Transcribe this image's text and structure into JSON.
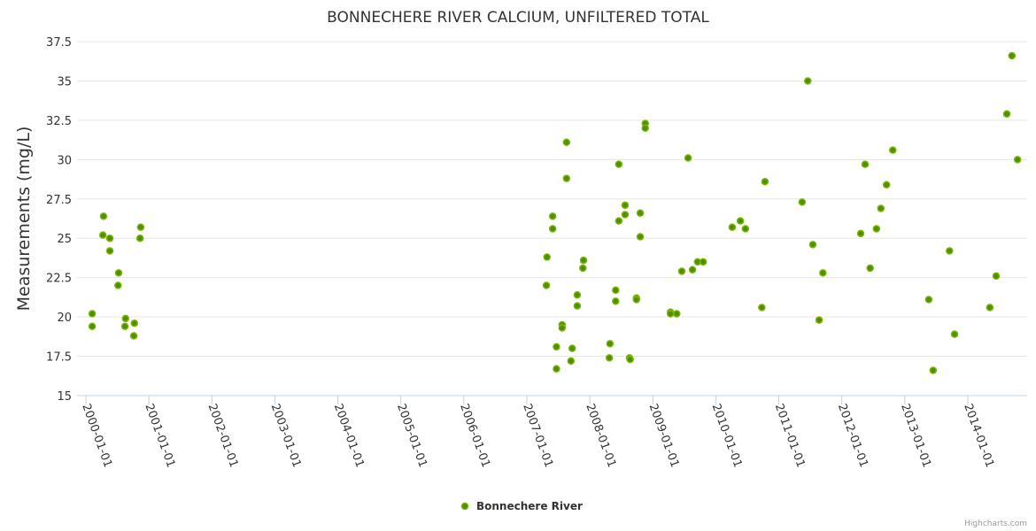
{
  "chart_data": {
    "type": "scatter",
    "title": "BONNECHERE RIVER CALCIUM, UNFILTERED TOTAL",
    "xlabel": "",
    "ylabel": "Measurements (mg/L)",
    "ylim": [
      15,
      37.5
    ],
    "yticks": [
      "15",
      "17.5",
      "20",
      "22.5",
      "25",
      "27.5",
      "30",
      "32.5",
      "35",
      "37.5"
    ],
    "xlim_year": [
      2000,
      2014.95
    ],
    "xticks": [
      "2000-01-01",
      "2001-01-01",
      "2002-01-01",
      "2003-01-01",
      "2004-01-01",
      "2005-01-01",
      "2006-01-01",
      "2007-01-01",
      "2008-01-01",
      "2009-01-01",
      "2010-01-01",
      "2011-01-01",
      "2012-01-01",
      "2013-01-01",
      "2014-01-01"
    ],
    "x_units": "decimal year",
    "grid": true,
    "legend_position": "bottom-center",
    "series": [
      {
        "name": "Bonnechere River",
        "color": "#7cb500",
        "fill": "#4e8f00",
        "points": [
          [
            2000.1,
            20.2
          ],
          [
            2000.1,
            19.4
          ],
          [
            2000.28,
            26.4
          ],
          [
            2000.27,
            25.2
          ],
          [
            2000.38,
            25.0
          ],
          [
            2000.38,
            24.2
          ],
          [
            2000.52,
            22.8
          ],
          [
            2000.51,
            22.0
          ],
          [
            2000.63,
            19.9
          ],
          [
            2000.62,
            19.4
          ],
          [
            2000.77,
            19.6
          ],
          [
            2000.76,
            18.8
          ],
          [
            2000.87,
            25.7
          ],
          [
            2000.86,
            25.0
          ],
          [
            2007.32,
            23.8
          ],
          [
            2007.31,
            22.0
          ],
          [
            2007.41,
            26.4
          ],
          [
            2007.41,
            25.6
          ],
          [
            2007.47,
            18.1
          ],
          [
            2007.47,
            16.7
          ],
          [
            2007.56,
            19.5
          ],
          [
            2007.56,
            19.3
          ],
          [
            2007.63,
            31.1
          ],
          [
            2007.63,
            28.8
          ],
          [
            2007.72,
            18.0
          ],
          [
            2007.7,
            17.2
          ],
          [
            2007.8,
            21.4
          ],
          [
            2007.8,
            20.7
          ],
          [
            2007.9,
            23.6
          ],
          [
            2007.89,
            23.1
          ],
          [
            2008.32,
            18.3
          ],
          [
            2008.31,
            17.4
          ],
          [
            2008.41,
            21.7
          ],
          [
            2008.41,
            21.0
          ],
          [
            2008.46,
            29.7
          ],
          [
            2008.46,
            26.1
          ],
          [
            2008.56,
            27.1
          ],
          [
            2008.56,
            26.5
          ],
          [
            2008.63,
            17.4
          ],
          [
            2008.64,
            17.3
          ],
          [
            2008.74,
            21.2
          ],
          [
            2008.74,
            21.1
          ],
          [
            2008.8,
            26.6
          ],
          [
            2008.8,
            25.1
          ],
          [
            2008.88,
            32.3
          ],
          [
            2008.88,
            32.0
          ],
          [
            2009.28,
            20.3
          ],
          [
            2009.28,
            20.2
          ],
          [
            2009.38,
            20.2
          ],
          [
            2009.46,
            22.9
          ],
          [
            2009.56,
            30.1
          ],
          [
            2009.63,
            23.0
          ],
          [
            2009.71,
            23.5
          ],
          [
            2009.8,
            23.5
          ],
          [
            2010.26,
            25.7
          ],
          [
            2010.39,
            26.1
          ],
          [
            2010.47,
            25.6
          ],
          [
            2010.73,
            20.6
          ],
          [
            2010.78,
            28.6
          ],
          [
            2011.37,
            27.3
          ],
          [
            2011.46,
            35.0
          ],
          [
            2011.54,
            24.6
          ],
          [
            2011.64,
            19.8
          ],
          [
            2011.7,
            22.8
          ],
          [
            2012.3,
            25.3
          ],
          [
            2012.37,
            29.7
          ],
          [
            2012.45,
            23.1
          ],
          [
            2012.55,
            25.6
          ],
          [
            2012.62,
            26.9
          ],
          [
            2012.71,
            28.4
          ],
          [
            2012.81,
            30.6
          ],
          [
            2013.38,
            21.1
          ],
          [
            2013.45,
            16.6
          ],
          [
            2013.71,
            24.2
          ],
          [
            2013.79,
            18.9
          ],
          [
            2014.35,
            20.6
          ],
          [
            2014.45,
            22.6
          ],
          [
            2014.62,
            32.9
          ],
          [
            2014.7,
            36.6
          ],
          [
            2014.79,
            30.0
          ]
        ]
      }
    ]
  },
  "credit": "Highcharts.com"
}
